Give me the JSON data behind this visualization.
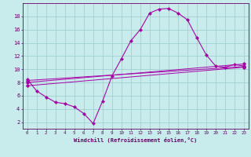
{
  "bg_color": "#c8ecec",
  "line_color": "#aa00aa",
  "grid_color": "#99cccc",
  "axis_color": "#660066",
  "text_color": "#660066",
  "xlim": [
    -0.5,
    23.5
  ],
  "ylim": [
    1,
    20
  ],
  "xticks": [
    0,
    1,
    2,
    3,
    4,
    5,
    6,
    7,
    8,
    9,
    10,
    11,
    12,
    13,
    14,
    15,
    16,
    17,
    18,
    19,
    20,
    21,
    22,
    23
  ],
  "yticks": [
    2,
    4,
    6,
    8,
    10,
    12,
    14,
    16,
    18
  ],
  "xlabel": "Windchill (Refroidissement éolien,°C)",
  "curve_main_x": [
    0,
    1,
    2,
    3,
    4,
    5,
    6,
    7,
    8,
    9,
    10,
    11,
    12,
    13,
    14,
    15,
    16,
    17,
    18,
    19,
    20,
    21,
    22,
    23
  ],
  "curve_main_y": [
    8.5,
    6.7,
    5.8,
    5.0,
    4.8,
    4.3,
    3.3,
    1.8,
    5.2,
    9.0,
    11.6,
    14.3,
    16.0,
    18.5,
    19.1,
    19.2,
    18.5,
    17.5,
    14.8,
    12.2,
    10.5,
    10.3,
    10.7,
    10.5
  ],
  "line1_x": [
    0,
    23
  ],
  "line1_y": [
    8.3,
    10.4
  ],
  "line2_x": [
    0,
    23
  ],
  "line2_y": [
    8.0,
    10.8
  ],
  "line3_x": [
    0,
    23
  ],
  "line3_y": [
    7.5,
    10.3
  ]
}
